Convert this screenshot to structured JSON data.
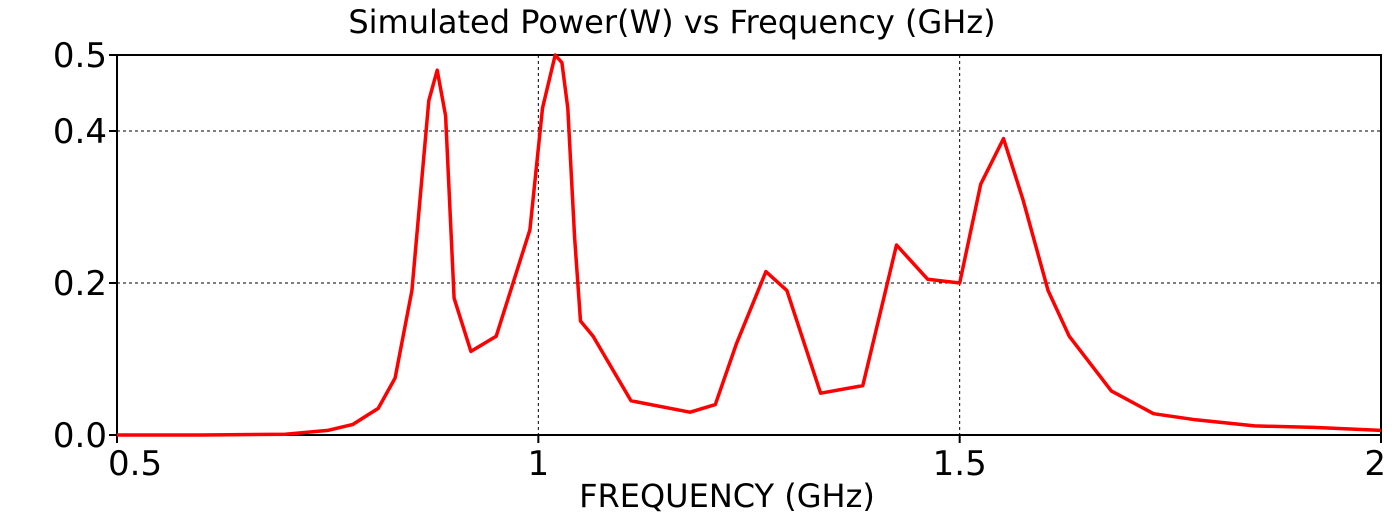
{
  "chart_data": {
    "type": "line",
    "title": "Simulated Power(W) vs Frequency (GHz)",
    "xlabel": "FREQUENCY (GHz)",
    "ylabel": "",
    "xlim": [
      0.5,
      2.0
    ],
    "ylim": [
      0.0,
      0.5
    ],
    "x_ticks": [
      0.5,
      1.0,
      1.5,
      2.0
    ],
    "x_tick_labels": [
      "0.5",
      "1",
      "1.5",
      "2"
    ],
    "y_ticks": [
      0.0,
      0.2,
      0.4,
      0.5
    ],
    "y_tick_labels": [
      "0.0",
      "0.2",
      "0.4",
      "0.5"
    ],
    "grid": true,
    "grid_style": "dotted",
    "colors": {
      "line": "#ff0000",
      "axis": "#000000",
      "grid": "#000000"
    },
    "series": [
      {
        "x": [
          0.5,
          0.6,
          0.7,
          0.75,
          0.78,
          0.81,
          0.83,
          0.85,
          0.87,
          0.88,
          0.89,
          0.9,
          0.92,
          0.95,
          0.99,
          1.005,
          1.02,
          1.028,
          1.035,
          1.043,
          1.05,
          1.065,
          1.11,
          1.18,
          1.21,
          1.235,
          1.27,
          1.295,
          1.335,
          1.385,
          1.425,
          1.462,
          1.5,
          1.525,
          1.552,
          1.575,
          1.605,
          1.63,
          1.68,
          1.73,
          1.78,
          1.85,
          1.92,
          2.0
        ],
        "y": [
          0.0,
          0.0,
          0.001,
          0.006,
          0.014,
          0.035,
          0.075,
          0.19,
          0.44,
          0.48,
          0.42,
          0.18,
          0.11,
          0.13,
          0.27,
          0.43,
          0.5,
          0.49,
          0.43,
          0.26,
          0.15,
          0.13,
          0.045,
          0.03,
          0.04,
          0.12,
          0.215,
          0.19,
          0.055,
          0.065,
          0.25,
          0.205,
          0.2,
          0.33,
          0.39,
          0.31,
          0.19,
          0.13,
          0.058,
          0.028,
          0.02,
          0.012,
          0.01,
          0.006
        ]
      }
    ]
  }
}
